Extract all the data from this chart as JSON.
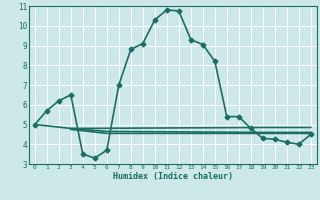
{
  "xlabel": "Humidex (Indice chaleur)",
  "bg_color": "#cce8e8",
  "grid_color": "#ffffff",
  "line_color": "#1a6e64",
  "xlim": [
    -0.5,
    23.5
  ],
  "ylim": [
    3,
    11
  ],
  "xticks": [
    0,
    1,
    2,
    3,
    4,
    5,
    6,
    7,
    8,
    9,
    10,
    11,
    12,
    13,
    14,
    15,
    16,
    17,
    18,
    19,
    20,
    21,
    22,
    23
  ],
  "yticks": [
    3,
    4,
    5,
    6,
    7,
    8,
    9,
    10,
    11
  ],
  "series": [
    {
      "x": [
        0,
        1,
        2,
        3,
        4,
        5,
        6,
        7,
        8,
        9,
        10,
        11,
        12,
        13,
        14,
        15,
        16,
        17,
        18,
        19,
        20,
        21,
        22,
        23
      ],
      "y": [
        5.0,
        5.7,
        6.2,
        6.5,
        3.5,
        3.3,
        3.7,
        7.0,
        8.8,
        9.1,
        10.3,
        10.8,
        10.75,
        9.3,
        9.05,
        8.2,
        5.4,
        5.4,
        4.8,
        4.3,
        4.25,
        4.1,
        4.0,
        4.5
      ],
      "marker": "D",
      "markersize": 2.5,
      "linewidth": 1.2,
      "zorder": 3
    },
    {
      "x": [
        0,
        3,
        19,
        23
      ],
      "y": [
        5.0,
        4.8,
        4.85,
        4.85
      ],
      "marker": null,
      "linewidth": 1.2,
      "zorder": 2
    },
    {
      "x": [
        3,
        6,
        19,
        23
      ],
      "y": [
        4.8,
        4.65,
        4.6,
        4.6
      ],
      "marker": null,
      "linewidth": 1.2,
      "zorder": 2
    },
    {
      "x": [
        3,
        6,
        19,
        23
      ],
      "y": [
        4.75,
        4.55,
        4.55,
        4.55
      ],
      "marker": null,
      "linewidth": 1.2,
      "zorder": 2
    }
  ]
}
